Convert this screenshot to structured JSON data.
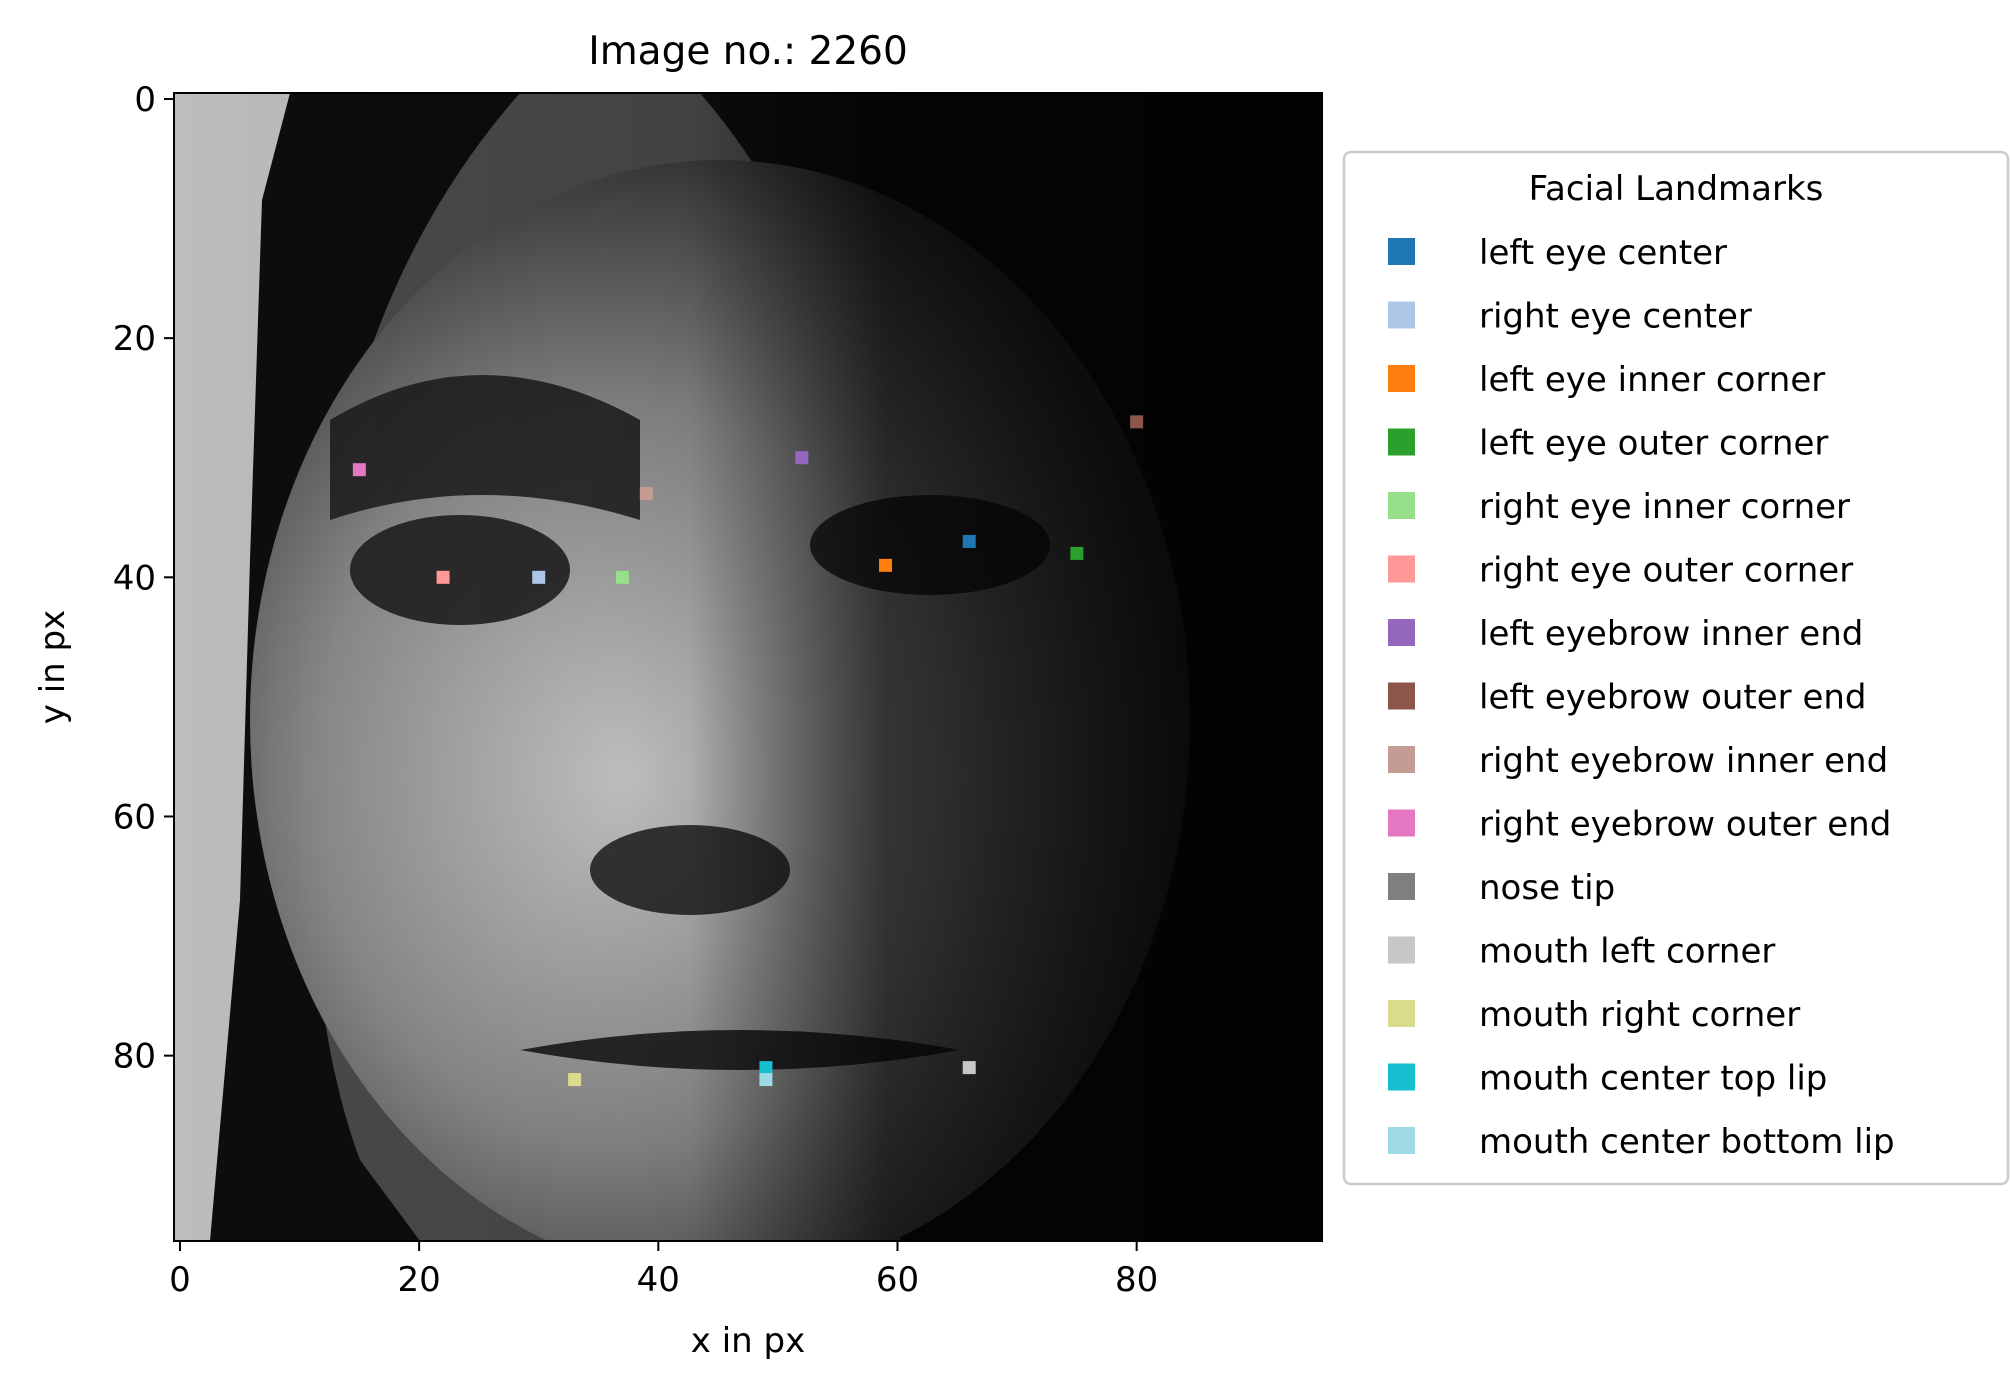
{
  "chart_data": {
    "type": "scatter",
    "title": "Image no.: 2260",
    "xlabel": "x in px",
    "ylabel": "y in px",
    "xlim": [
      -0.5,
      95.5
    ],
    "ylim": [
      95.5,
      -0.5
    ],
    "xticks": [
      0,
      20,
      40,
      60,
      80
    ],
    "yticks": [
      0,
      20,
      40,
      60,
      80
    ],
    "background": "grayscale face photograph (96x96 px)",
    "legend": {
      "title": "Facial Landmarks",
      "placement": "outside-right"
    },
    "series": [
      {
        "name": "left eye center",
        "color": "#1f77b4",
        "x": 66,
        "y": 37
      },
      {
        "name": "right eye center",
        "color": "#aec7e8",
        "x": 30,
        "y": 40
      },
      {
        "name": "left eye inner corner",
        "color": "#ff7f0e",
        "x": 59,
        "y": 39
      },
      {
        "name": "left eye outer corner",
        "color": "#2ca02c",
        "x": 75,
        "y": 38
      },
      {
        "name": "right eye inner corner",
        "color": "#98df8a",
        "x": 37,
        "y": 40
      },
      {
        "name": "right eye outer corner",
        "color": "#ff9896",
        "x": 22,
        "y": 40
      },
      {
        "name": "left eyebrow inner end",
        "color": "#9467bd",
        "x": 52,
        "y": 30
      },
      {
        "name": "left eyebrow outer end",
        "color": "#8c564b",
        "x": 80,
        "y": 27
      },
      {
        "name": "right eyebrow inner end",
        "color": "#c49c94",
        "x": 39,
        "y": 33
      },
      {
        "name": "right eyebrow outer end",
        "color": "#e377c2",
        "x": 15,
        "y": 31
      },
      {
        "name": "nose tip",
        "color": "#7f7f7f",
        "x": null,
        "y": null
      },
      {
        "name": "mouth left corner",
        "color": "#c7c7c7",
        "x": 66,
        "y": 81
      },
      {
        "name": "mouth right corner",
        "color": "#dbdb8d",
        "x": 33,
        "y": 82
      },
      {
        "name": "mouth center top lip",
        "color": "#17becf",
        "x": 49,
        "y": 81
      },
      {
        "name": "mouth center bottom lip",
        "color": "#9edae5",
        "x": 49,
        "y": 82
      }
    ]
  }
}
